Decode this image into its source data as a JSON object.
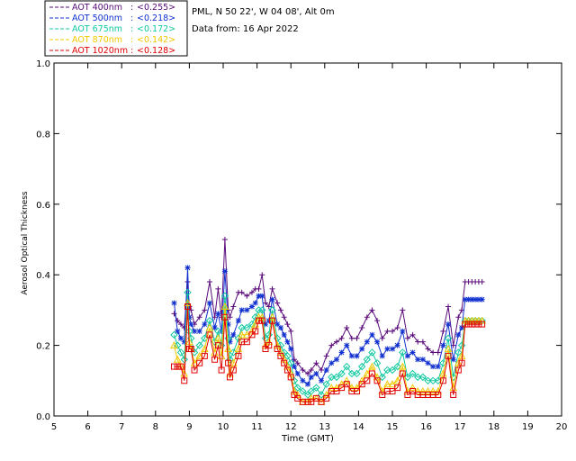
{
  "header": {
    "site": "PML, N 50 22', W 04 08', Alt 0m",
    "date": "Data from: 16 Apr 2022"
  },
  "chart_data": {
    "type": "line",
    "xlabel": "Time (GMT)",
    "ylabel": "Aerosol Optical Thickness",
    "xlim": [
      5,
      20
    ],
    "ylim": [
      0.0,
      1.0
    ],
    "xticks": [
      "5",
      "6",
      "7",
      "8",
      "9",
      "10",
      "11",
      "12",
      "13",
      "14",
      "15",
      "16",
      "17",
      "18",
      "19",
      "20"
    ],
    "yticks": [
      "0.0",
      "0.2",
      "0.4",
      "0.6",
      "0.8",
      "1.0"
    ],
    "x": [
      8.55,
      8.65,
      8.75,
      8.85,
      8.95,
      9.0,
      9.05,
      9.15,
      9.3,
      9.45,
      9.6,
      9.75,
      9.85,
      9.95,
      10.05,
      10.15,
      10.2,
      10.3,
      10.45,
      10.55,
      10.7,
      10.85,
      10.95,
      11.05,
      11.15,
      11.25,
      11.35,
      11.45,
      11.6,
      11.7,
      11.8,
      11.9,
      12.0,
      12.1,
      12.2,
      12.35,
      12.5,
      12.6,
      12.75,
      12.9,
      13.05,
      13.2,
      13.35,
      13.5,
      13.65,
      13.8,
      13.95,
      14.1,
      14.25,
      14.4,
      14.55,
      14.7,
      14.85,
      15.0,
      15.15,
      15.3,
      15.45,
      15.6,
      15.75,
      15.9,
      16.05,
      16.2,
      16.35,
      16.5,
      16.65,
      16.8,
      16.95,
      17.05,
      17.15,
      17.25,
      17.35,
      17.45,
      17.55,
      17.65
    ],
    "series": [
      {
        "name": "AOT  400nm",
        "mean": "<0.255>",
        "color": "#5a0a7a",
        "marker": "plus",
        "values": [
          0.29,
          0.27,
          0.26,
          0.25,
          0.38,
          0.31,
          0.3,
          0.26,
          0.28,
          0.3,
          0.38,
          0.28,
          0.36,
          0.28,
          0.5,
          0.3,
          0.28,
          0.31,
          0.35,
          0.35,
          0.34,
          0.35,
          0.36,
          0.36,
          0.4,
          0.32,
          0.31,
          0.36,
          0.32,
          0.3,
          0.28,
          0.26,
          0.24,
          0.16,
          0.15,
          0.13,
          0.12,
          0.13,
          0.15,
          0.13,
          0.17,
          0.2,
          0.21,
          0.22,
          0.25,
          0.22,
          0.22,
          0.25,
          0.28,
          0.3,
          0.27,
          0.22,
          0.24,
          0.24,
          0.25,
          0.3,
          0.22,
          0.23,
          0.21,
          0.21,
          0.19,
          0.18,
          0.18,
          0.24,
          0.31,
          0.2,
          0.28,
          0.3,
          0.38,
          0.38,
          0.38,
          0.38,
          0.38,
          0.38
        ]
      },
      {
        "name": "AOT  500nm",
        "mean": "<0.218>",
        "color": "#1030d0",
        "marker": "star",
        "values": [
          0.32,
          0.24,
          0.22,
          0.21,
          0.42,
          0.28,
          0.26,
          0.24,
          0.24,
          0.26,
          0.32,
          0.25,
          0.29,
          0.24,
          0.41,
          0.26,
          0.21,
          0.23,
          0.27,
          0.3,
          0.3,
          0.31,
          0.32,
          0.34,
          0.34,
          0.26,
          0.27,
          0.33,
          0.26,
          0.25,
          0.23,
          0.21,
          0.19,
          0.14,
          0.12,
          0.1,
          0.09,
          0.11,
          0.12,
          0.1,
          0.13,
          0.15,
          0.16,
          0.18,
          0.2,
          0.17,
          0.17,
          0.19,
          0.21,
          0.23,
          0.21,
          0.17,
          0.19,
          0.19,
          0.2,
          0.24,
          0.17,
          0.18,
          0.16,
          0.16,
          0.15,
          0.14,
          0.14,
          0.2,
          0.26,
          0.16,
          0.23,
          0.25,
          0.33,
          0.33,
          0.33,
          0.33,
          0.33,
          0.33
        ]
      },
      {
        "name": "AOT  675nm",
        "mean": "<0.172>",
        "color": "#10c8a0",
        "marker": "diamond",
        "values": [
          0.23,
          0.2,
          0.18,
          0.16,
          0.35,
          0.24,
          0.22,
          0.18,
          0.2,
          0.22,
          0.27,
          0.21,
          0.24,
          0.2,
          0.34,
          0.22,
          0.16,
          0.18,
          0.22,
          0.25,
          0.25,
          0.26,
          0.28,
          0.3,
          0.3,
          0.22,
          0.23,
          0.3,
          0.22,
          0.2,
          0.18,
          0.17,
          0.15,
          0.1,
          0.08,
          0.07,
          0.06,
          0.07,
          0.08,
          0.06,
          0.09,
          0.11,
          0.11,
          0.12,
          0.14,
          0.12,
          0.12,
          0.14,
          0.16,
          0.18,
          0.15,
          0.11,
          0.13,
          0.13,
          0.14,
          0.18,
          0.11,
          0.12,
          0.11,
          0.11,
          0.1,
          0.1,
          0.1,
          0.15,
          0.22,
          0.11,
          0.18,
          0.2,
          0.27,
          0.27,
          0.27,
          0.27,
          0.27,
          0.27
        ]
      },
      {
        "name": "AOT  870nm",
        "mean": "<0.142>",
        "color": "#f0c800",
        "marker": "triangle",
        "values": [
          0.2,
          0.16,
          0.14,
          0.12,
          0.32,
          0.21,
          0.19,
          0.15,
          0.17,
          0.19,
          0.25,
          0.18,
          0.22,
          0.17,
          0.31,
          0.19,
          0.12,
          0.15,
          0.19,
          0.23,
          0.23,
          0.24,
          0.26,
          0.28,
          0.28,
          0.2,
          0.21,
          0.28,
          0.2,
          0.18,
          0.16,
          0.14,
          0.12,
          0.07,
          0.06,
          0.04,
          0.04,
          0.05,
          0.05,
          0.04,
          0.06,
          0.08,
          0.08,
          0.09,
          0.1,
          0.08,
          0.08,
          0.1,
          0.12,
          0.14,
          0.11,
          0.07,
          0.09,
          0.09,
          0.1,
          0.14,
          0.07,
          0.08,
          0.07,
          0.07,
          0.07,
          0.07,
          0.07,
          0.12,
          0.19,
          0.08,
          0.15,
          0.17,
          0.27,
          0.27,
          0.27,
          0.27,
          0.27,
          0.27
        ]
      },
      {
        "name": "AOT 1020nm",
        "mean": "<0.128>",
        "color": "#e00000",
        "marker": "square",
        "values": [
          0.14,
          0.14,
          0.14,
          0.1,
          0.31,
          0.19,
          0.19,
          0.13,
          0.15,
          0.17,
          0.23,
          0.16,
          0.2,
          0.13,
          0.28,
          0.15,
          0.11,
          0.13,
          0.17,
          0.21,
          0.21,
          0.23,
          0.24,
          0.27,
          0.27,
          0.19,
          0.2,
          0.27,
          0.19,
          0.17,
          0.15,
          0.13,
          0.11,
          0.06,
          0.05,
          0.04,
          0.04,
          0.04,
          0.05,
          0.04,
          0.05,
          0.07,
          0.07,
          0.08,
          0.09,
          0.07,
          0.07,
          0.09,
          0.1,
          0.12,
          0.1,
          0.06,
          0.07,
          0.07,
          0.08,
          0.12,
          0.06,
          0.07,
          0.06,
          0.06,
          0.06,
          0.06,
          0.06,
          0.1,
          0.17,
          0.06,
          0.13,
          0.15,
          0.26,
          0.26,
          0.26,
          0.26,
          0.26,
          0.26
        ]
      }
    ]
  }
}
